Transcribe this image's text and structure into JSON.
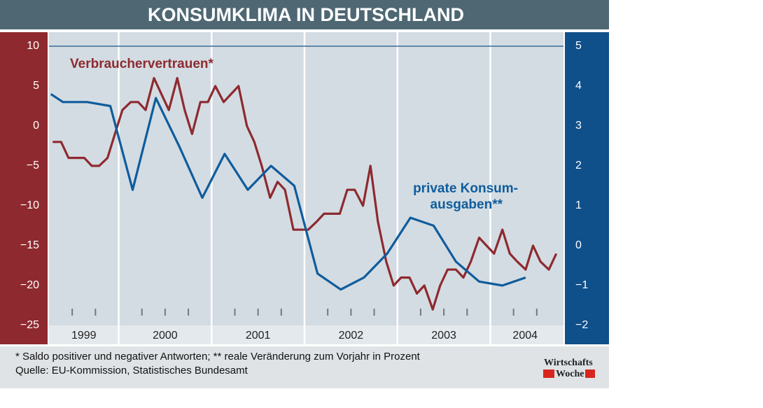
{
  "chart_data": {
    "type": "line",
    "title": "KONSUMKLIMA IN DEUTSCHLAND",
    "xlim": [
      1999.25,
      2004.75
    ],
    "xticks": [
      1999,
      2000,
      2001,
      2002,
      2003,
      2004
    ],
    "xminorticks": [
      1999.5,
      1999.75,
      2000.25,
      2000.5,
      2000.75,
      2001.25,
      2001.5,
      2001.75,
      2002.25,
      2002.5,
      2002.75,
      2003.25,
      2003.5,
      2003.75,
      2004.25,
      2004.5
    ],
    "ylim": [
      -25,
      10
    ],
    "yticks": [
      {
        "value": -25,
        "label": "−25"
      },
      {
        "value": -20,
        "label": "−20"
      },
      {
        "value": -15,
        "label": "−15"
      },
      {
        "value": -10,
        "label": "−10"
      },
      {
        "value": -5,
        "label": "−5"
      },
      0,
      5,
      10
    ],
    "y2lim": [
      -2,
      5
    ],
    "y2ticks": [
      {
        "value": -2,
        "label": "−2"
      },
      {
        "value": -1,
        "label": "−1"
      },
      0,
      1,
      2,
      3,
      4,
      5
    ],
    "series": [
      {
        "name": "Verbrauchervertrauen*",
        "color": "#8e2a2f",
        "x": [
          1999.29,
          1999.38,
          1999.46,
          1999.54,
          1999.63,
          1999.71,
          1999.79,
          1999.88,
          1999.96,
          2000.04,
          2000.13,
          2000.21,
          2000.29,
          2000.38,
          2000.46,
          2000.54,
          2000.63,
          2000.71,
          2000.79,
          2000.88,
          2000.96,
          2001.04,
          2001.13,
          2001.21,
          2001.29,
          2001.38,
          2001.46,
          2001.54,
          2001.63,
          2001.71,
          2001.79,
          2001.88,
          2001.96,
          2002.04,
          2002.13,
          2002.21,
          2002.29,
          2002.38,
          2002.46,
          2002.54,
          2002.63,
          2002.71,
          2002.79,
          2002.88,
          2002.96,
          2003.04,
          2003.13,
          2003.21,
          2003.29,
          2003.38,
          2003.46,
          2003.54,
          2003.63,
          2003.71,
          2003.79,
          2003.88,
          2003.96,
          2004.04,
          2004.13,
          2004.21,
          2004.29,
          2004.38,
          2004.46,
          2004.54,
          2004.63,
          2004.71
        ],
        "values": [
          -2,
          -2,
          -4,
          -4,
          -4,
          -5,
          -5,
          -4,
          -1,
          2,
          3,
          3,
          2,
          6,
          4,
          2,
          6,
          2,
          -1,
          3,
          3,
          5,
          3,
          4,
          5,
          0,
          -2,
          -5,
          -9,
          -7,
          -8,
          -13,
          -13,
          -13,
          -12,
          -11,
          -11,
          -11,
          -8,
          -8,
          -10,
          -5,
          -12,
          -17,
          -20,
          -19,
          -19,
          -21,
          -20,
          -23,
          -20,
          -18,
          -18,
          -19,
          -17,
          -14,
          -15,
          -16,
          -13,
          -16,
          -17,
          -18,
          -15,
          -17,
          -18,
          -16
        ]
      },
      {
        "name": [
          "private Konsum-",
          "ausgaben**"
        ],
        "color": "#0f5c9c",
        "axis": "y2",
        "x": [
          1999.27,
          1999.4,
          1999.66,
          1999.91,
          2000.15,
          2000.4,
          2000.65,
          2000.9,
          2001.14,
          2001.39,
          2001.64,
          2001.89,
          2002.14,
          2002.39,
          2002.64,
          2002.89,
          2003.14,
          2003.39,
          2003.63,
          2003.88,
          2004.13,
          2004.38
        ],
        "values": [
          3.8,
          3.6,
          3.6,
          3.5,
          1.4,
          3.7,
          2.5,
          1.2,
          2.3,
          1.4,
          2.0,
          1.5,
          -0.7,
          -1.1,
          -0.8,
          -0.2,
          0.7,
          0.5,
          -0.4,
          -0.9,
          -1.0,
          -0.8
        ]
      }
    ],
    "notes": [
      "* Saldo positiver und negativer Antworten; ** reale Veränderung zum Vorjahr in Prozent",
      "Quelle: EU-Kommission, Statistisches Bundesamt"
    ],
    "logo": [
      "Wirtschafts",
      "Woche"
    ]
  }
}
